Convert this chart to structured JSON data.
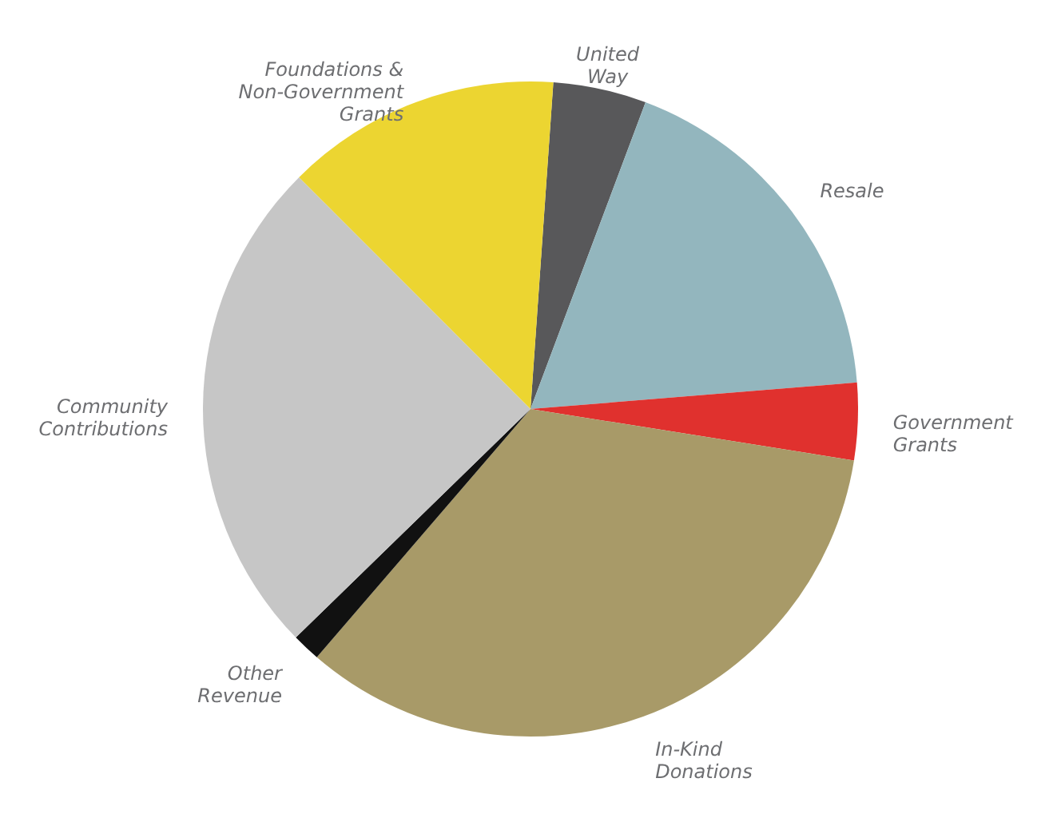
{
  "chart_data": {
    "type": "pie",
    "categories": [
      "United\nWay",
      "Resale",
      "Government\nGrants",
      "In-Kind\nDonations",
      "Other\nRevenue",
      "Community\nContributions",
      "Foundations &\nNon-Government\nGrants"
    ],
    "values": [
      4.6,
      18.0,
      3.8,
      33.8,
      1.4,
      24.8,
      13.6
    ],
    "colors": [
      "#58585a",
      "#93b6be",
      "#e0312e",
      "#a89a68",
      "#111111",
      "#c6c6c6",
      "#ecd531"
    ]
  }
}
